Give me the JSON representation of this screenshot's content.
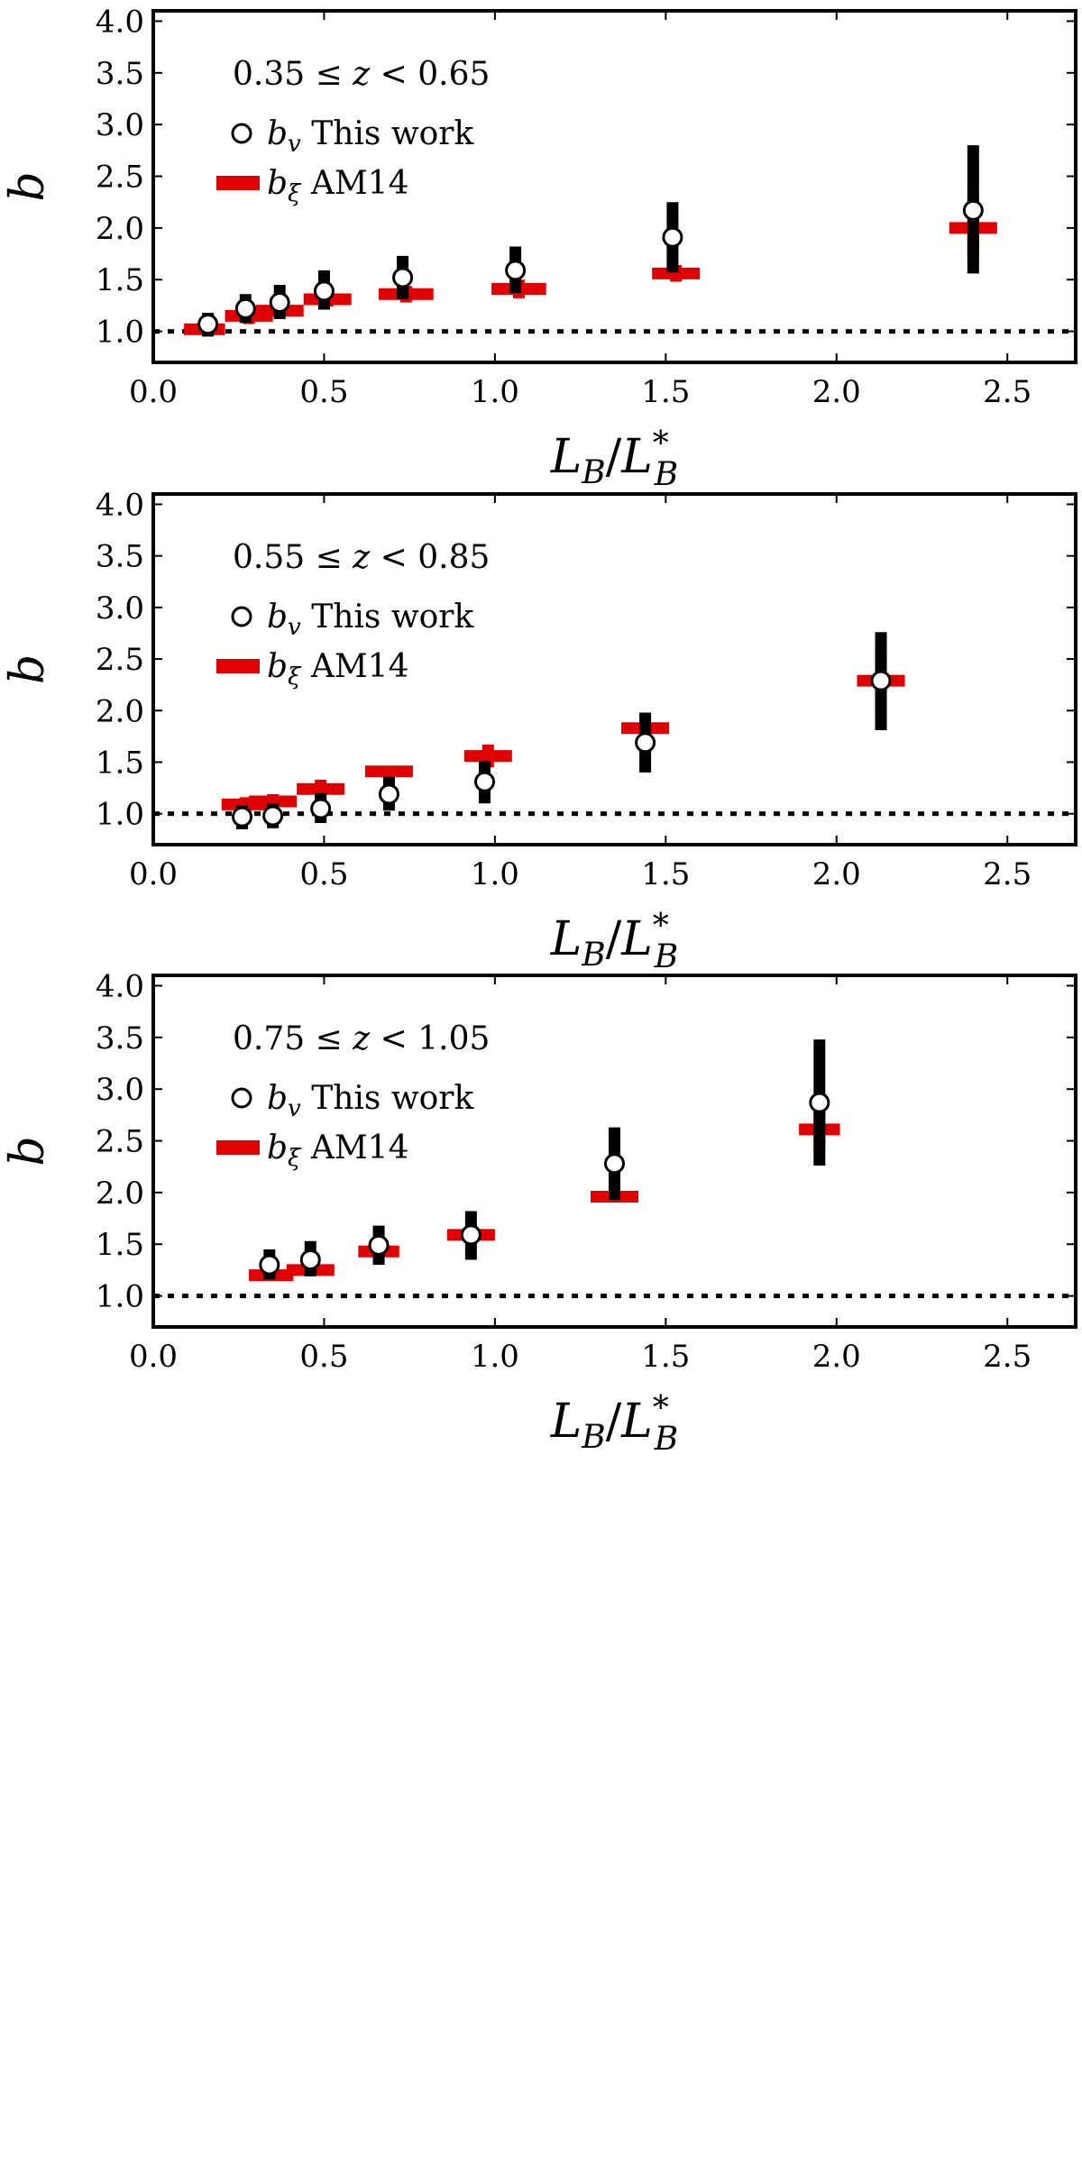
{
  "chart_data": [
    {
      "type": "scatter",
      "title": "0.35 ≤ z < 0.65",
      "xlabel": "L_B/L*_B",
      "ylabel": "b",
      "xlim": [
        0.0,
        2.7
      ],
      "ylim": [
        0.7,
        4.1
      ],
      "xticks": [
        "0.0",
        "0.5",
        "1.0",
        "1.5",
        "2.0",
        "2.5"
      ],
      "yticks": [
        "1.0",
        "1.5",
        "2.0",
        "2.5",
        "3.0",
        "3.5",
        "4.0"
      ],
      "reference_line": 1.0,
      "series": [
        {
          "name": "b_v This work",
          "color": "#000000",
          "marker": "open-circle",
          "x": [
            0.16,
            0.27,
            0.37,
            0.5,
            0.73,
            1.06,
            1.52,
            2.4
          ],
          "y": [
            1.07,
            1.22,
            1.28,
            1.39,
            1.52,
            1.59,
            1.91,
            2.17
          ],
          "y_lower": [
            0.95,
            1.08,
            1.12,
            1.21,
            1.31,
            1.37,
            1.57,
            1.56
          ],
          "y_upper": [
            1.18,
            1.36,
            1.45,
            1.59,
            1.73,
            1.82,
            2.25,
            2.8
          ]
        },
        {
          "name": "b_ξ AM14",
          "color": "#e00000",
          "marker": "error-cross",
          "x": [
            0.15,
            0.28,
            0.37,
            0.51,
            0.74,
            1.07,
            1.53,
            2.4
          ],
          "y": [
            1.02,
            1.15,
            1.2,
            1.31,
            1.36,
            1.41,
            1.56,
            2.0
          ],
          "y_lower": [
            0.99,
            1.07,
            1.12,
            1.24,
            1.28,
            1.32,
            1.48,
            1.72
          ],
          "y_upper": [
            1.05,
            1.23,
            1.28,
            1.38,
            1.44,
            1.5,
            1.64,
            2.3
          ],
          "x_lower": [
            0.09,
            0.21,
            0.3,
            0.44,
            0.66,
            0.99,
            1.46,
            2.33
          ],
          "x_upper": [
            0.21,
            0.35,
            0.44,
            0.58,
            0.82,
            1.15,
            1.6,
            2.47
          ]
        }
      ]
    },
    {
      "type": "scatter",
      "title": "0.55 ≤ z < 0.85",
      "xlabel": "L_B/L*_B",
      "ylabel": "b",
      "xlim": [
        0.0,
        2.7
      ],
      "ylim": [
        0.7,
        4.1
      ],
      "xticks": [
        "0.0",
        "0.5",
        "1.0",
        "1.5",
        "2.0",
        "2.5"
      ],
      "yticks": [
        "1.0",
        "1.5",
        "2.0",
        "2.5",
        "3.0",
        "3.5",
        "4.0"
      ],
      "reference_line": 1.0,
      "series": [
        {
          "name": "b_v This work",
          "color": "#000000",
          "marker": "open-circle",
          "x": [
            0.26,
            0.35,
            0.49,
            0.69,
            0.97,
            1.44,
            2.13
          ],
          "y": [
            0.97,
            0.98,
            1.05,
            1.19,
            1.31,
            1.69,
            2.29
          ],
          "y_lower": [
            0.85,
            0.86,
            0.91,
            1.03,
            1.1,
            1.4,
            1.81
          ],
          "y_upper": [
            1.08,
            1.1,
            1.2,
            1.36,
            1.51,
            1.98,
            2.76
          ]
        },
        {
          "name": "b_ξ AM14",
          "color": "#e00000",
          "marker": "error-cross",
          "x": [
            0.27,
            0.35,
            0.49,
            0.69,
            0.98,
            1.44,
            2.13
          ],
          "y": [
            1.09,
            1.12,
            1.24,
            1.41,
            1.56,
            1.83,
            2.29
          ],
          "y_lower": [
            1.02,
            1.05,
            1.15,
            1.36,
            1.45,
            1.77,
            1.99
          ],
          "y_upper": [
            1.16,
            1.19,
            1.33,
            1.46,
            1.67,
            1.89,
            2.59
          ],
          "x_lower": [
            0.2,
            0.28,
            0.42,
            0.62,
            0.91,
            1.37,
            2.06
          ],
          "x_upper": [
            0.34,
            0.42,
            0.56,
            0.76,
            1.05,
            1.51,
            2.2
          ]
        }
      ]
    },
    {
      "type": "scatter",
      "title": "0.75 ≤ z < 1.05",
      "xlabel": "L_B/L*_B",
      "ylabel": "b",
      "xlim": [
        0.0,
        2.7
      ],
      "ylim": [
        0.7,
        4.1
      ],
      "xticks": [
        "0.0",
        "0.5",
        "1.0",
        "1.5",
        "2.0",
        "2.5"
      ],
      "yticks": [
        "1.0",
        "1.5",
        "2.0",
        "2.5",
        "3.0",
        "3.5",
        "4.0"
      ],
      "reference_line": 1.0,
      "series": [
        {
          "name": "b_v This work",
          "color": "#000000",
          "marker": "open-circle",
          "x": [
            0.34,
            0.46,
            0.66,
            0.93,
            1.35,
            1.95
          ],
          "y": [
            1.3,
            1.35,
            1.49,
            1.59,
            2.28,
            2.87
          ],
          "y_lower": [
            1.16,
            1.19,
            1.3,
            1.35,
            1.93,
            2.26
          ],
          "y_upper": [
            1.45,
            1.53,
            1.68,
            1.82,
            2.63,
            3.48
          ]
        },
        {
          "name": "b_ξ AM14",
          "color": "#e00000",
          "marker": "error-cross",
          "x": [
            0.34,
            0.46,
            0.66,
            0.93,
            1.35,
            1.95
          ],
          "y": [
            1.2,
            1.25,
            1.43,
            1.59,
            1.96,
            2.61
          ],
          "y_lower": [
            1.15,
            1.19,
            1.38,
            1.52,
            1.92,
            2.4
          ],
          "y_upper": [
            1.25,
            1.31,
            1.48,
            1.66,
            2.0,
            2.82
          ],
          "x_lower": [
            0.28,
            0.39,
            0.6,
            0.86,
            1.28,
            1.89
          ],
          "x_upper": [
            0.41,
            0.53,
            0.72,
            1.0,
            1.42,
            2.01
          ]
        }
      ]
    }
  ]
}
